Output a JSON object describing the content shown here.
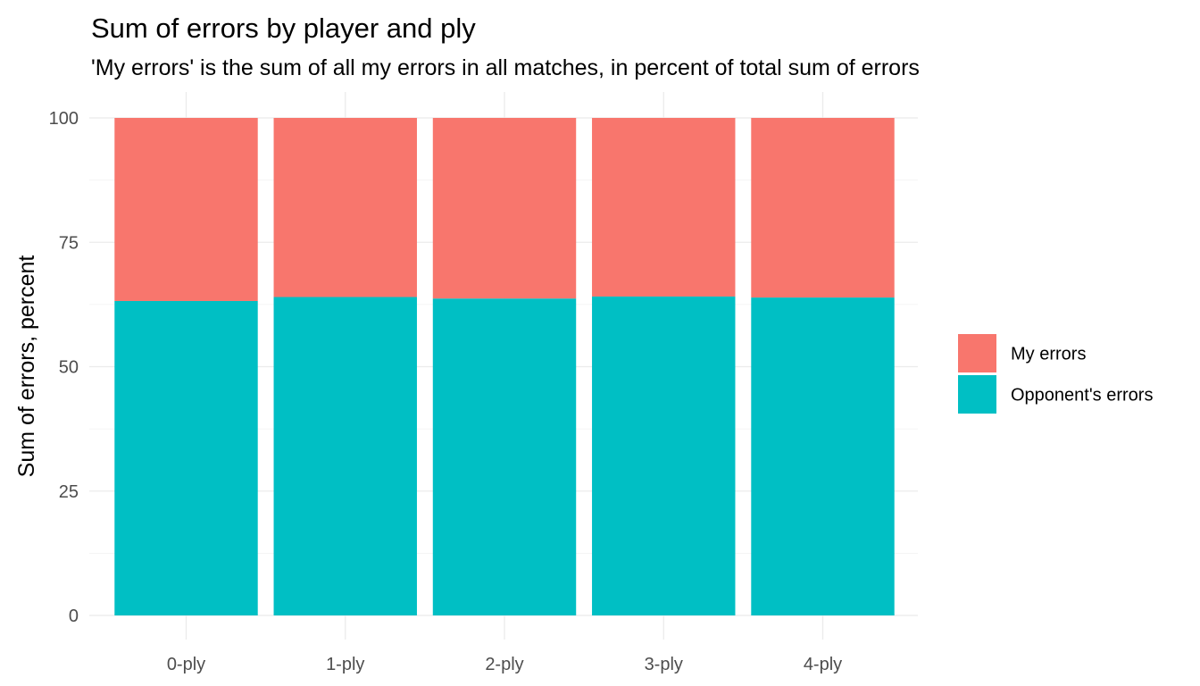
{
  "chart_data": {
    "type": "bar",
    "stacked": true,
    "title": "Sum of errors by player and ply",
    "subtitle": "'My errors' is the sum of all my errors in all matches, in percent of total sum of errors",
    "xlabel": "",
    "ylabel": "Sum of errors, percent",
    "categories": [
      "0-ply",
      "1-ply",
      "2-ply",
      "3-ply",
      "4-ply"
    ],
    "series": [
      {
        "name": "Opponent's errors",
        "color": "#00BFC4",
        "values": [
          63.2,
          64.0,
          63.7,
          64.1,
          63.9
        ]
      },
      {
        "name": "My errors",
        "color": "#F8766D",
        "values": [
          36.8,
          36.0,
          36.3,
          35.9,
          36.1
        ]
      }
    ],
    "ylim": [
      0,
      100
    ],
    "yticks": [
      0,
      25,
      50,
      75,
      100
    ],
    "grid": true,
    "legend_position": "right",
    "legend_order": [
      "My errors",
      "Opponent's errors"
    ]
  }
}
